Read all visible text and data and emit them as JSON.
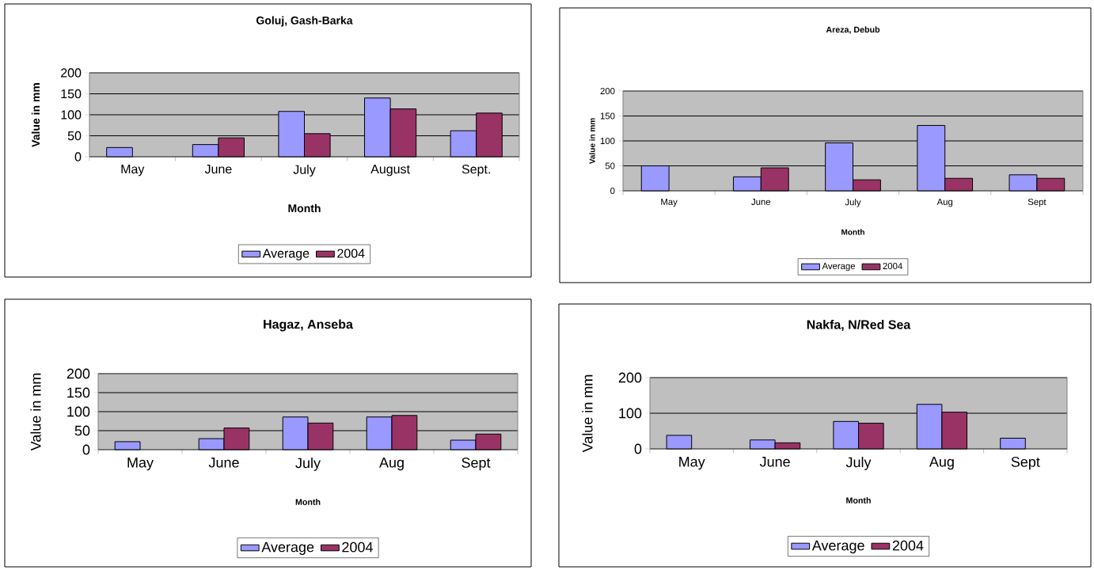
{
  "chart_data": [
    {
      "type": "bar",
      "title": "Goluj, Gash-Barka",
      "xlabel": "Month",
      "ylabel": "Value in mm",
      "categories": [
        "May",
        "June",
        "July",
        "August",
        "Sept."
      ],
      "ylim": [
        0,
        200
      ],
      "yticks": [
        0,
        50,
        100,
        150,
        200
      ],
      "grid": "y",
      "legend": "bottom",
      "series": [
        {
          "name": "Average",
          "color": "#9999ff",
          "values": [
            22,
            29,
            108,
            140,
            62
          ]
        },
        {
          "name": "2004",
          "color": "#993366",
          "values": [
            null,
            45,
            55,
            114,
            104
          ]
        }
      ]
    },
    {
      "type": "bar",
      "title": "Areza, Debub",
      "xlabel": "Month",
      "ylabel": "Value in mm",
      "categories": [
        "May",
        "June",
        "July",
        "Aug",
        "Sept"
      ],
      "ylim": [
        0,
        200
      ],
      "yticks": [
        0,
        50,
        100,
        150,
        200
      ],
      "grid": "y",
      "legend": "bottom",
      "series": [
        {
          "name": "Average",
          "color": "#9999ff",
          "values": [
            50,
            28,
            96,
            131,
            32
          ]
        },
        {
          "name": "2004",
          "color": "#993366",
          "values": [
            null,
            46,
            22,
            25,
            25
          ]
        }
      ]
    },
    {
      "type": "bar",
      "title": "Hagaz, Anseba",
      "xlabel": "Month",
      "ylabel": "Value in mm",
      "categories": [
        "May",
        "June",
        "July",
        "Aug",
        "Sept"
      ],
      "ylim": [
        0,
        200
      ],
      "yticks": [
        0,
        50,
        100,
        150,
        200
      ],
      "grid": "y",
      "legend": "bottom",
      "series": [
        {
          "name": "Average",
          "color": "#9999ff",
          "values": [
            21,
            29,
            86,
            86,
            25
          ]
        },
        {
          "name": "2004",
          "color": "#993366",
          "values": [
            null,
            57,
            70,
            90,
            41
          ]
        }
      ]
    },
    {
      "type": "bar",
      "title": "Nakfa, N/Red Sea",
      "xlabel": "Month",
      "ylabel": "Value in mm",
      "categories": [
        "May",
        "June",
        "July",
        "Aug",
        "Sept"
      ],
      "ylim": [
        0,
        200
      ],
      "yticks": [
        0,
        100,
        200
      ],
      "grid": "y",
      "legend": "bottom",
      "series": [
        {
          "name": "Average",
          "color": "#9999ff",
          "values": [
            38,
            25,
            77,
            125,
            30
          ]
        },
        {
          "name": "2004",
          "color": "#993366",
          "values": [
            null,
            17,
            72,
            103,
            null
          ]
        }
      ]
    }
  ]
}
